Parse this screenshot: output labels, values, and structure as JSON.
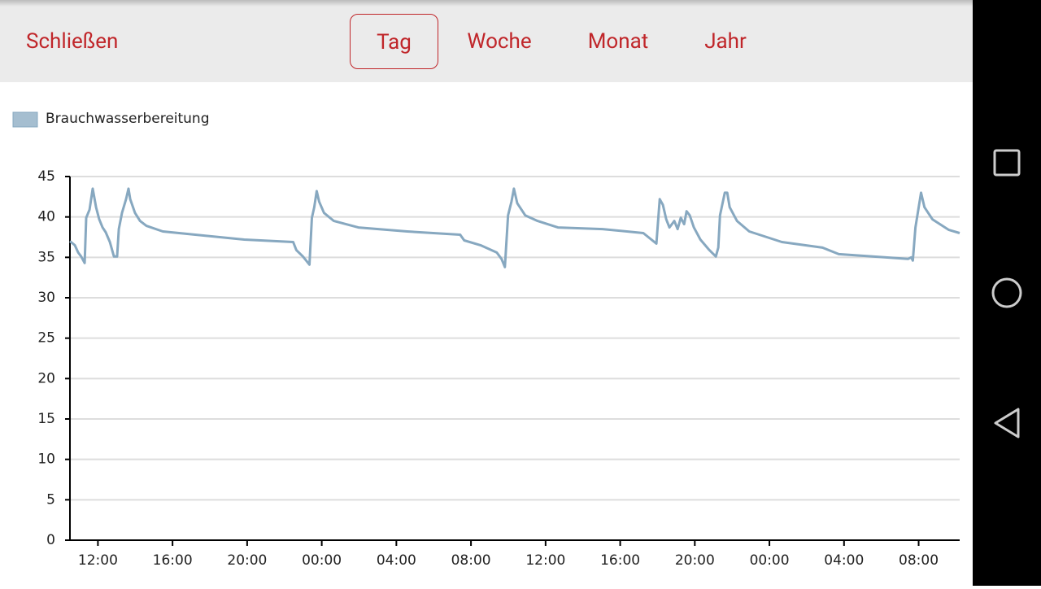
{
  "header": {
    "close": "Schließen",
    "tabs": [
      "Tag",
      "Woche",
      "Monat",
      "Jahr"
    ],
    "selected_tab": 0
  },
  "chart_data": {
    "type": "line",
    "x": [
      10.5,
      10.76,
      10.94,
      11.1,
      11.29,
      11.37,
      11.55,
      11.72,
      11.9,
      12.07,
      12.25,
      12.42,
      12.64,
      12.86,
      13.03,
      13.12,
      13.29,
      13.51,
      13.64,
      13.73,
      13.99,
      14.26,
      14.6,
      15.48,
      17.66,
      19.85,
      22.47,
      22.64,
      22.99,
      23.34,
      23.47,
      23.6,
      23.73,
      23.86,
      24.12,
      24.65,
      25.96,
      28.58,
      31.42,
      31.64,
      32.51,
      33.38,
      33.64,
      33.82,
      33.99,
      34.17,
      34.3,
      34.48,
      34.91,
      35.57,
      36.66,
      39.06,
      41.24,
      41.94,
      42.12,
      42.29,
      42.47,
      42.64,
      42.9,
      43.08,
      43.25,
      43.43,
      43.56,
      43.73,
      43.95,
      44.3,
      44.74,
      45.13,
      45.26,
      45.35,
      45.61,
      45.74,
      45.87,
      46.26,
      46.92,
      48.67,
      50.85,
      51.72,
      55.43,
      55.6,
      55.69,
      55.83,
      56.13,
      56.31,
      56.74,
      57.62,
      58.2
    ],
    "series": [
      {
        "name": "Brauchwasserbereitung",
        "color": "#87a8c0",
        "values": [
          37,
          36.5,
          35.6,
          35.1,
          34.3,
          39.9,
          40.9,
          43.5,
          41.2,
          39.7,
          38.7,
          38.1,
          36.9,
          35.1,
          35.1,
          38.5,
          40.5,
          42.2,
          43.5,
          42.2,
          40.5,
          39.5,
          38.9,
          38.2,
          37.7,
          37.2,
          36.9,
          35.9,
          35.1,
          34.1,
          39.9,
          41.2,
          43.2,
          41.9,
          40.5,
          39.5,
          38.7,
          38.2,
          37.8,
          37.1,
          36.5,
          35.6,
          34.8,
          33.8,
          40.2,
          41.9,
          43.5,
          41.7,
          40.2,
          39.5,
          38.7,
          38.5,
          38.0,
          36.7,
          42.2,
          41.5,
          39.7,
          38.7,
          39.5,
          38.5,
          39.9,
          39.1,
          40.7,
          40.2,
          38.7,
          37.2,
          36.0,
          35.1,
          36.2,
          40.2,
          43.0,
          43.0,
          41.2,
          39.5,
          38.2,
          36.9,
          36.2,
          35.4,
          34.8,
          35.0,
          34.6,
          38.7,
          43.0,
          41.2,
          39.7,
          38.4,
          38.0
        ]
      }
    ],
    "xlim": [
      10.5,
      58.2
    ],
    "ylim": [
      0,
      45
    ],
    "xticks": [
      {
        "value": 12,
        "label": "12:00"
      },
      {
        "value": 16,
        "label": "16:00"
      },
      {
        "value": 20,
        "label": "20:00"
      },
      {
        "value": 24,
        "label": "00:00"
      },
      {
        "value": 28,
        "label": "04:00"
      },
      {
        "value": 32,
        "label": "08:00"
      },
      {
        "value": 36,
        "label": "12:00"
      },
      {
        "value": 40,
        "label": "16:00"
      },
      {
        "value": 44,
        "label": "20:00"
      },
      {
        "value": 48,
        "label": "00:00"
      },
      {
        "value": 52,
        "label": "04:00"
      },
      {
        "value": 56,
        "label": "08:00"
      }
    ],
    "yticks": [
      0,
      5,
      10,
      15,
      20,
      25,
      30,
      35,
      40,
      45
    ],
    "grid": true
  }
}
